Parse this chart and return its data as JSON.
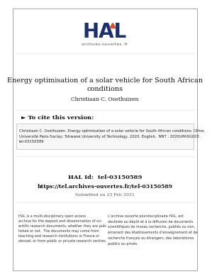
{
  "bg_color": "#ffffff",
  "title_line1": "Energy optimisation of a solar vehicle for South African",
  "title_line2": "conditions",
  "author": "Christiaan C. Oosthuizen",
  "cite_header": "► To cite this version:",
  "cite_text": "Christiaan C. Oosthuizen. Energy optimisation of a solar vehicle for South African conditions. Other.\nUniversité Paris-Saclay; Tshwane University of Technology, 2020. English.  NNT : 2020UPASG003 .\ntel-03150589",
  "hal_id": "HAL Id:  tel-03150589",
  "hal_url": "https://tel.archives-ouvertes.fr/tel-03150589",
  "submitted": "Submitted on 23 Feb 2021",
  "hal_left": "HAL is a multi-disciplinary open access\narchive for the deposit and dissemination of sci-\nentific research documents, whether they are pub-\nlished or not.  The documents may come from\nteaching and research institutions in France or\nabroad, or from public or private research centres.",
  "hal_right": "L’archive ouverte pluridisciplinaire HAL, est\ndestinée au dépôt et à la diffusion de documents\nscientifiques de niveau recherche, publiés ou non,\némanant des établissements d’enseignement et de\nrecherche français ou étrangers, des laboratoires\npublics ou privés.",
  "hal_logo_color": "#1b2f6e",
  "hal_arrow_color": "#d94f2b",
  "archives_text": "archives-ouvertes .fr",
  "text_dark": "#111111",
  "text_gray": "#555555",
  "text_cite": "#222222",
  "border_color": "#999999",
  "cite_box_bg": "#f7f7f7",
  "cite_box_border": "#bbbbbb"
}
